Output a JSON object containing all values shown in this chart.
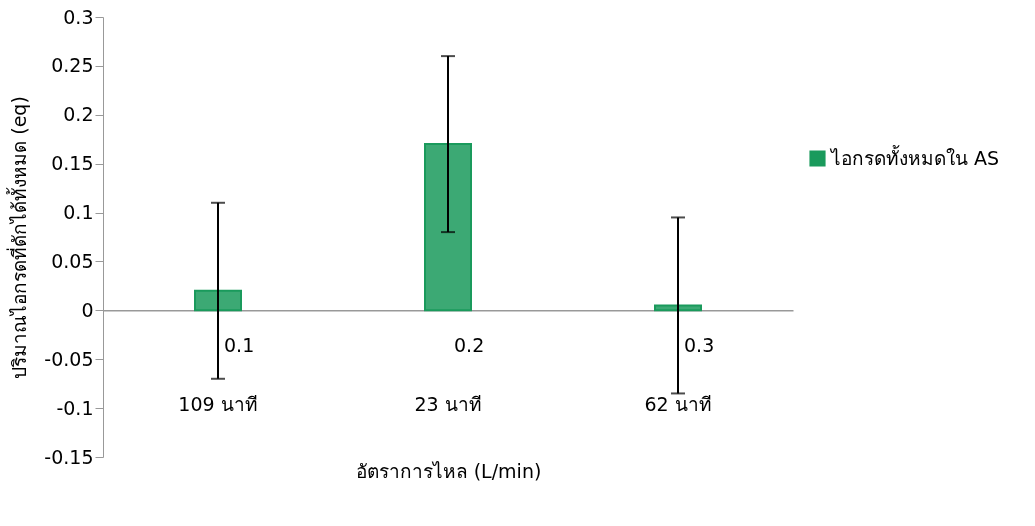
{
  "chart_data": {
    "type": "bar",
    "xlabel": "อัตราการไหล (L/min)",
    "ylabel": "ปริมาณไอกรดที่ดักได้ทั้งหมด (eq)",
    "categories": [
      "0.1",
      "0.2",
      "0.3"
    ],
    "series": [
      {
        "name": "ไอกรดทั้งหมดใน AS",
        "color": "#1a9a5c",
        "values": [
          0.02,
          0.17,
          0.005
        ],
        "errors": [
          0.09,
          0.09,
          0.09
        ]
      }
    ],
    "ylim": [
      -0.15,
      0.3
    ],
    "yticks": [
      -0.15,
      -0.1,
      -0.05,
      0,
      0.05,
      0.1,
      0.15,
      0.2,
      0.25,
      0.3
    ],
    "grid": false,
    "legend": "right",
    "annotations": [
      "109 นาที",
      "23 นาที",
      "62 นาที"
    ]
  }
}
